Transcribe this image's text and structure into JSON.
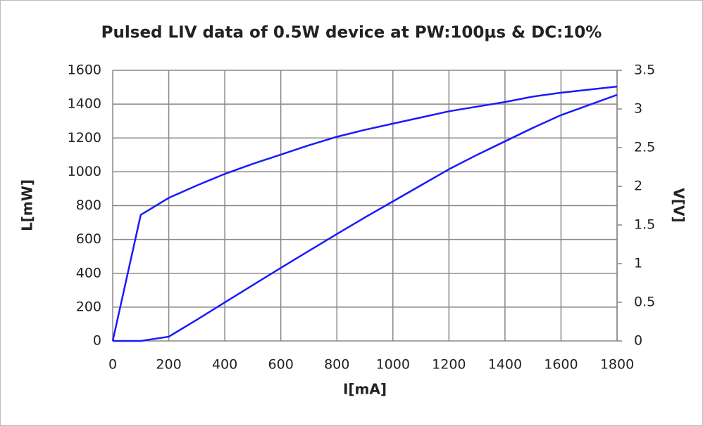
{
  "chart_data": {
    "type": "line",
    "title": "Pulsed LIV data of 0.5W device at PW:100µs & DC:10%",
    "x_label": "I[mA]",
    "y_label": "L[mW]",
    "y2_label": "V[V]",
    "x": [
      0,
      100,
      200,
      300,
      400,
      500,
      600,
      700,
      800,
      900,
      1000,
      1100,
      1200,
      1300,
      1400,
      1500,
      1600,
      1700,
      1800
    ],
    "series": [
      {
        "name": "L",
        "color": "#1a1aff",
        "values": [
          0,
          0,
          25,
          125,
          228,
          330,
          432,
          532,
          632,
          730,
          825,
          920,
          1015,
          1100,
          1180,
          1260,
          1335,
          1395,
          1455
        ]
      },
      {
        "name": "V",
        "color": "#1a1aff",
        "axis": "y2",
        "values": [
          0,
          1.63,
          1.85,
          2.01,
          2.16,
          2.29,
          2.41,
          2.53,
          2.64,
          2.73,
          2.81,
          2.89,
          2.97,
          3.03,
          3.09,
          3.16,
          3.21,
          3.25,
          3.29
        ]
      }
    ],
    "xlim": [
      0,
      1800
    ],
    "xticks": [
      0,
      200,
      400,
      600,
      800,
      1000,
      1200,
      1400,
      1600,
      1800
    ],
    "ylim": [
      0,
      1600
    ],
    "yticks": [
      0,
      200,
      400,
      600,
      800,
      1000,
      1200,
      1400,
      1600
    ],
    "y2lim": [
      0,
      3.5
    ],
    "y2ticks": [
      0,
      0.5,
      1,
      1.5,
      2,
      2.5,
      3,
      3.5
    ],
    "grid": true
  }
}
